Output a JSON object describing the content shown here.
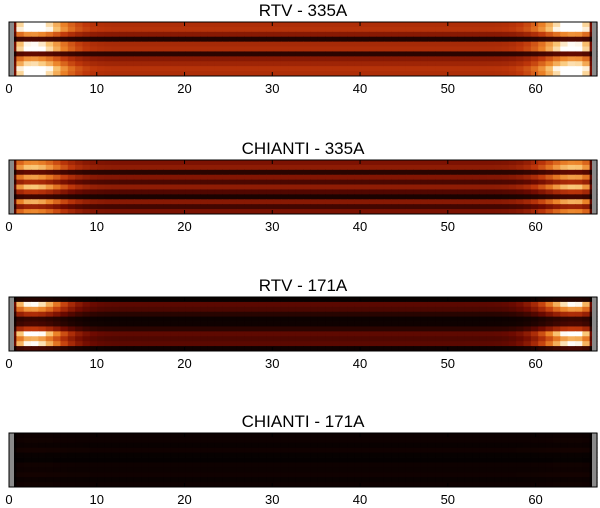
{
  "chart_data": [
    {
      "type": "heatmap",
      "title": "RTV - 335A",
      "xlim": [
        0,
        67
      ],
      "x_ticks": [
        "0",
        "10",
        "20",
        "30",
        "40",
        "50",
        "60"
      ],
      "x_tick_values": [
        0,
        10,
        20,
        30,
        40,
        50,
        60
      ],
      "colormap": "red-temperature (black → red → orange → white)",
      "rows": 11,
      "row_peak_intensity": [
        0.95,
        1.0,
        0.7,
        0.2,
        0.9,
        0.95,
        0.25,
        0.7,
        0.85,
        1.0,
        0.95
      ],
      "edge_brightening": 1.0,
      "center_level": 0.45
    },
    {
      "type": "heatmap",
      "title": "CHIANTI - 335A",
      "xlim": [
        0,
        67
      ],
      "x_ticks": [
        "0",
        "10",
        "20",
        "30",
        "40",
        "50",
        "60"
      ],
      "x_tick_values": [
        0,
        10,
        20,
        30,
        40,
        50,
        60
      ],
      "colormap": "red-temperature (black → red → orange → white)",
      "rows": 11,
      "row_peak_intensity": [
        0.8,
        0.95,
        0.3,
        0.85,
        0.55,
        0.95,
        0.6,
        0.2,
        0.9,
        0.5,
        0.8
      ],
      "edge_brightening": 0.85,
      "center_level": 0.35
    },
    {
      "type": "heatmap",
      "title": "RTV - 171A",
      "xlim": [
        0,
        67
      ],
      "x_ticks": [
        "0",
        "10",
        "20",
        "30",
        "40",
        "50",
        "60"
      ],
      "x_tick_values": [
        0,
        10,
        20,
        30,
        40,
        50,
        60
      ],
      "colormap": "red-temperature (black → red → orange → white)",
      "rows": 11,
      "row_peak_intensity": [
        0.1,
        0.95,
        0.75,
        0.5,
        0.15,
        0.2,
        0.55,
        1.0,
        0.8,
        0.95,
        0.2
      ],
      "edge_brightening": 0.95,
      "center_level": 0.2
    },
    {
      "type": "heatmap",
      "title": "CHIANTI - 171A",
      "xlim": [
        0,
        67
      ],
      "x_ticks": [
        "0",
        "10",
        "20",
        "30",
        "40",
        "50",
        "60"
      ],
      "x_tick_values": [
        0,
        10,
        20,
        30,
        40,
        50,
        60
      ],
      "colormap": "red-temperature (black → red → orange → white)",
      "rows": 11,
      "row_peak_intensity": [
        0.25,
        0.3,
        0.2,
        0.35,
        0.15,
        0.1,
        0.3,
        0.25,
        0.35,
        0.2,
        0.3
      ],
      "edge_brightening": 0.15,
      "center_level": 0.12
    }
  ]
}
